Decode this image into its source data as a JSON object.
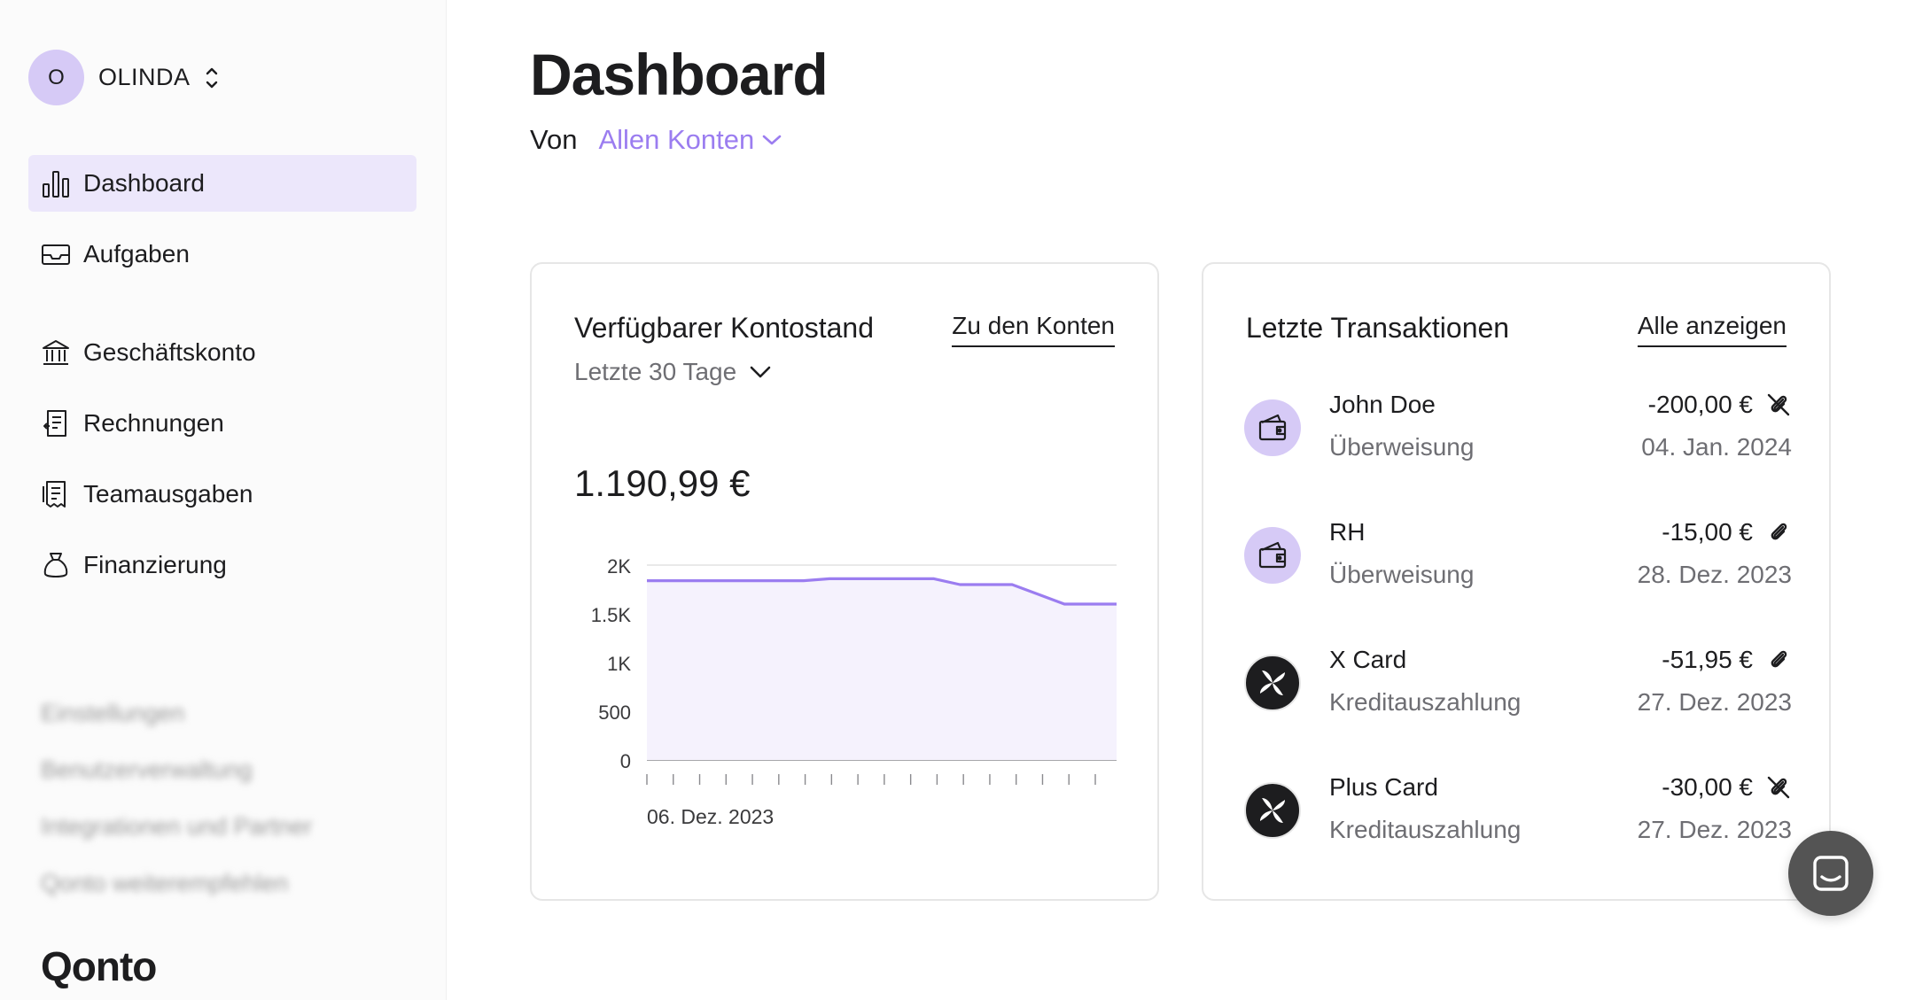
{
  "sidebar": {
    "org": {
      "initial": "O",
      "name": "OLINDA"
    },
    "nav": [
      {
        "label": "Dashboard",
        "icon": "bar-chart-icon",
        "active": true
      },
      {
        "label": "Aufgaben",
        "icon": "inbox-icon"
      },
      {
        "label": "Geschäftskonto",
        "icon": "bank-icon"
      },
      {
        "label": "Rechnungen",
        "icon": "invoice-icon"
      },
      {
        "label": "Teamausgaben",
        "icon": "receipt-icon"
      },
      {
        "label": "Finanzierung",
        "icon": "money-bag-icon"
      }
    ],
    "secondary": [
      "Einstellungen",
      "Benutzerverwaltung",
      "Integrationen und Partner",
      "Qonto weiterempfehlen"
    ],
    "logo": "Qonto"
  },
  "header": {
    "title": "Dashboard",
    "filter_label": "Von",
    "filter_value": "Allen Konten"
  },
  "balance_card": {
    "title": "Verfügbarer Kontostand",
    "link": "Zu den Konten",
    "period": "Letzte 30 Tage",
    "balance": "1.190,99 €"
  },
  "transactions_card": {
    "title": "Letzte Transaktionen",
    "link": "Alle anzeigen",
    "items": [
      {
        "name": "John Doe",
        "type": "Überweisung",
        "amount": "-200,00 €",
        "date": "04. Jan. 2024",
        "icon": "wallet-icon",
        "attachment": "attachment-missing-icon"
      },
      {
        "name": "RH",
        "type": "Überweisung",
        "amount": "-15,00 €",
        "date": "28. Dez. 2023",
        "icon": "wallet-icon",
        "attachment": "attachment-icon"
      },
      {
        "name": "X Card",
        "type": "Kreditauszahlung",
        "amount": "-51,95 €",
        "date": "27. Dez. 2023",
        "icon": "x-card-logo-icon",
        "attachment": "attachment-icon"
      },
      {
        "name": "Plus Card",
        "type": "Kreditauszahlung",
        "amount": "-30,00 €",
        "date": "27. Dez. 2023",
        "icon": "x-card-logo-icon",
        "attachment": "attachment-missing-icon"
      }
    ]
  },
  "colors": {
    "accent": "#9b7df0",
    "active_nav": "#ece7fb",
    "avatar": "#d6caf6",
    "line": "#9b7df0",
    "area": "#f5f2fd"
  },
  "chart_data": {
    "type": "area",
    "ylim": [
      0,
      2000
    ],
    "yticks": [
      "2K",
      "1.5K",
      "1K",
      "500",
      "0"
    ],
    "ytick_values": [
      2000,
      1500,
      1000,
      500,
      0
    ],
    "x_label_first": "06. Dez. 2023",
    "x_tick_count": 18,
    "series": [
      {
        "values": [
          1840,
          1840,
          1840,
          1840,
          1840,
          1840,
          1840,
          1860,
          1860,
          1860,
          1860,
          1860,
          1800,
          1800,
          1800,
          1700,
          1600,
          1600,
          1600
        ]
      }
    ],
    "grid": true
  }
}
